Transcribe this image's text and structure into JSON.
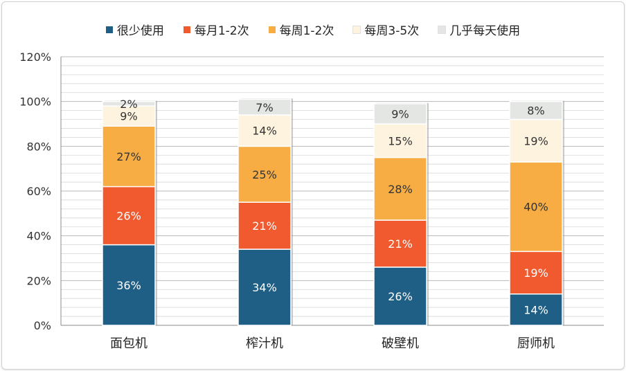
{
  "chart_data": {
    "type": "bar",
    "stacked": true,
    "categories": [
      "面包机",
      "榨汁机",
      "破壁机",
      "厨师机"
    ],
    "series": [
      {
        "name": "很少使用",
        "color": "#1f5f86",
        "values": [
          36,
          34,
          26,
          14
        ]
      },
      {
        "name": "每月1-2次",
        "color": "#f05a2e",
        "values": [
          26,
          21,
          21,
          19
        ]
      },
      {
        "name": "每周1-2次",
        "color": "#f7ad44",
        "values": [
          27,
          25,
          28,
          40
        ]
      },
      {
        "name": "每周3-5次",
        "color": "#fdf3de",
        "values": [
          9,
          14,
          15,
          19
        ]
      },
      {
        "name": "几乎每天使用",
        "color": "#e3e6e3",
        "values": [
          2,
          7,
          9,
          8
        ]
      }
    ],
    "ylim": [
      0,
      120
    ],
    "yticks": [
      0,
      20,
      40,
      60,
      80,
      100,
      120
    ],
    "ytick_labels": [
      "0%",
      "20%",
      "40%",
      "60%",
      "80%",
      "100%",
      "120%"
    ],
    "value_labels": [
      [
        "36%",
        "34%",
        "26%",
        "14%"
      ],
      [
        "26%",
        "21%",
        "21%",
        "19%"
      ],
      [
        "27%",
        "25%",
        "28%",
        "40%"
      ],
      [
        "9%",
        "14%",
        "15%",
        "19%"
      ],
      [
        "2%",
        "7%",
        "9%",
        "8%"
      ]
    ],
    "grid": true,
    "legend_position": "top"
  }
}
